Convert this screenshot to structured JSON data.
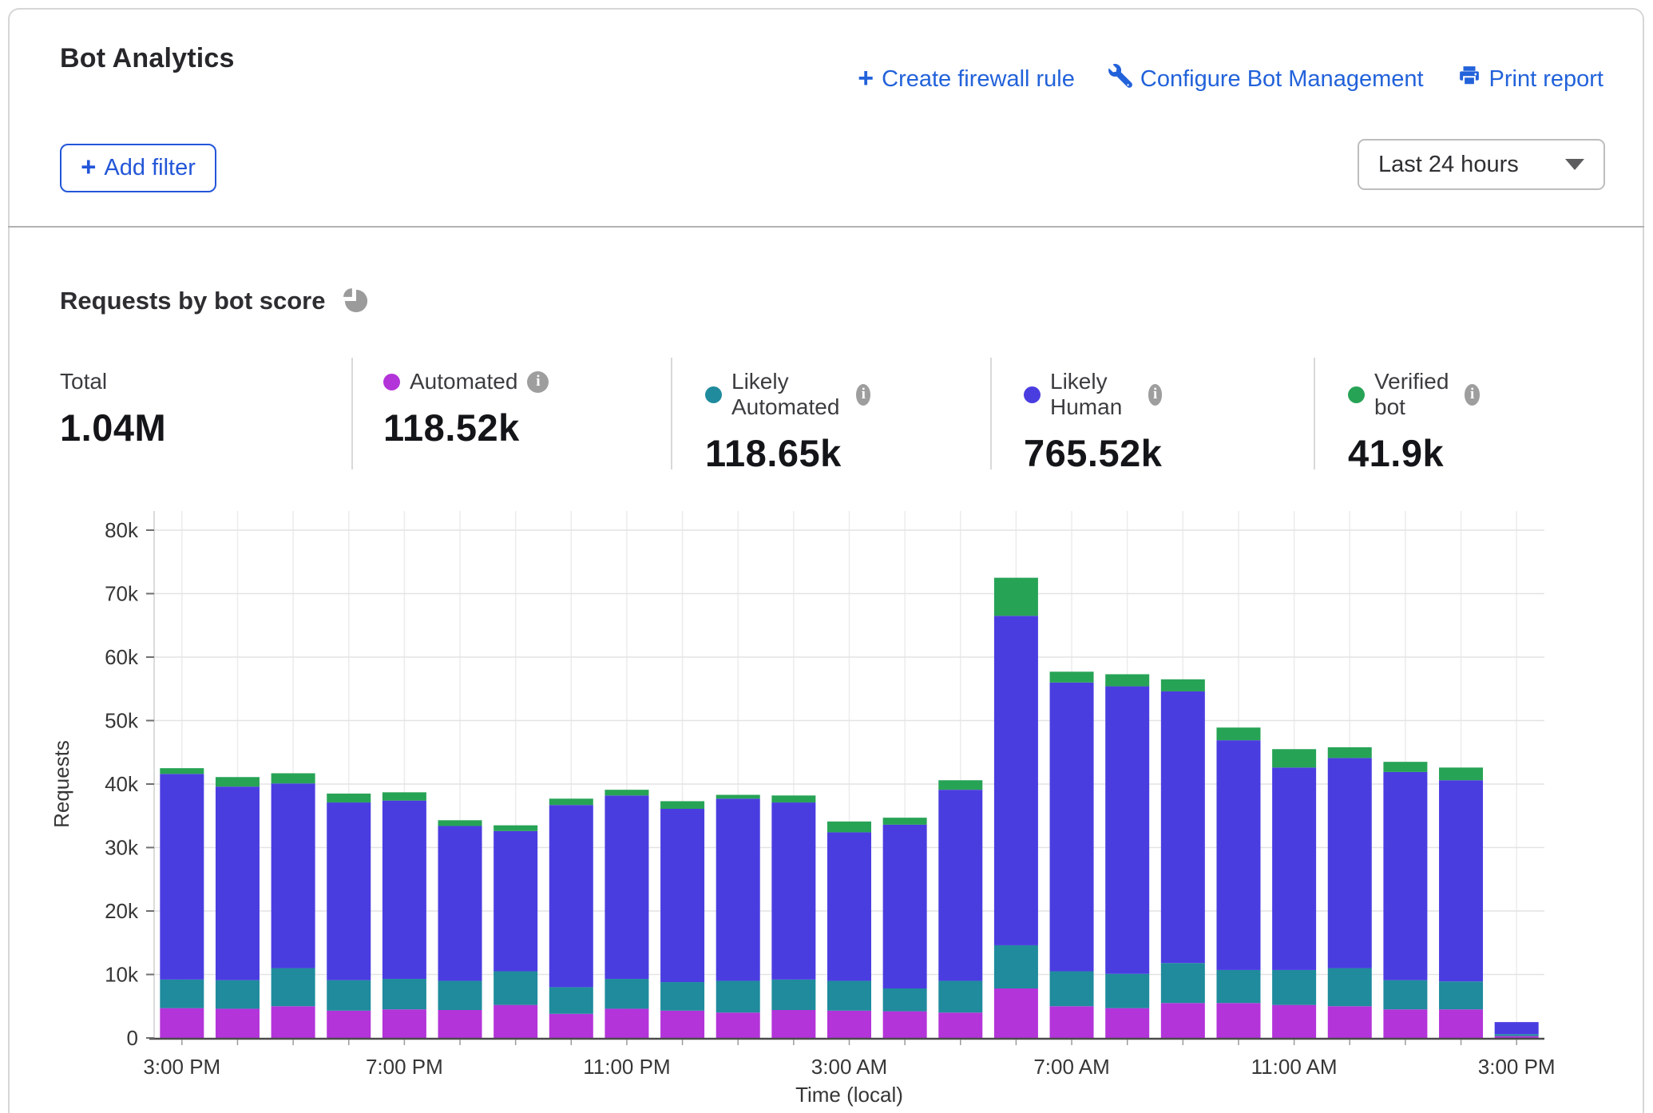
{
  "header": {
    "title": "Bot Analytics",
    "actions": [
      {
        "label": "Create firewall rule",
        "icon": "plus-icon"
      },
      {
        "label": "Configure Bot Management",
        "icon": "wrench-icon"
      },
      {
        "label": "Print report",
        "icon": "printer-icon"
      }
    ]
  },
  "filters": {
    "add_filter_label": "Add filter",
    "time_range_value": "Last 24 hours"
  },
  "section": {
    "title": "Requests by bot score"
  },
  "stats": {
    "items": [
      {
        "label": "Total",
        "value": "1.04M"
      },
      {
        "label": "Automated",
        "value": "118.52k",
        "color": "#b334d9",
        "has_info": true
      },
      {
        "label": "Likely Automated",
        "value": "118.65k",
        "color": "#1f8b9d",
        "has_info": true
      },
      {
        "label": "Likely Human",
        "value": "765.52k",
        "color": "#4a3de0",
        "has_info": true
      },
      {
        "label": "Verified bot",
        "value": "41.9k",
        "color": "#27a356",
        "has_info": true
      }
    ]
  },
  "chart_data": {
    "type": "bar",
    "stacked": true,
    "title": "Requests by bot score",
    "xlabel": "Time (local)",
    "ylabel": "Requests",
    "unit": "thousands of requests",
    "ylim": [
      0,
      80
    ],
    "y_ticks": [
      "0",
      "10k",
      "20k",
      "30k",
      "40k",
      "50k",
      "60k",
      "70k",
      "80k"
    ],
    "grid": true,
    "categories": [
      "3:00 PM",
      "4:00 PM",
      "5:00 PM",
      "6:00 PM",
      "7:00 PM",
      "8:00 PM",
      "9:00 PM",
      "10:00 PM",
      "11:00 PM",
      "12:00 AM",
      "1:00 AM",
      "2:00 AM",
      "3:00 AM",
      "4:00 AM",
      "5:00 AM",
      "6:00 AM",
      "7:00 AM",
      "8:00 AM",
      "9:00 AM",
      "10:00 AM",
      "11:00 AM",
      "12:00 PM",
      "1:00 PM",
      "2:00 PM",
      "3:00 PM"
    ],
    "x_label_indices": [
      0,
      4,
      8,
      12,
      16,
      20,
      24
    ],
    "series": [
      {
        "name": "Automated",
        "color": "#b334d9",
        "values": [
          4.7,
          4.6,
          5.0,
          4.3,
          4.5,
          4.4,
          5.2,
          3.8,
          4.6,
          4.3,
          4.0,
          4.4,
          4.3,
          4.2,
          4.0,
          7.8,
          5.0,
          4.7,
          5.5,
          5.5,
          5.2,
          5.0,
          4.5,
          4.5,
          0.3
        ]
      },
      {
        "name": "Likely Automated",
        "color": "#1f8b9d",
        "values": [
          4.5,
          4.5,
          6.0,
          4.8,
          4.8,
          4.6,
          5.3,
          4.2,
          4.7,
          4.5,
          5.0,
          4.8,
          4.7,
          3.6,
          5.0,
          6.8,
          5.5,
          5.4,
          6.3,
          5.2,
          5.5,
          6.0,
          4.6,
          4.4,
          0.3
        ]
      },
      {
        "name": "Likely Human",
        "color": "#4a3de0",
        "values": [
          32.4,
          30.5,
          29.1,
          28.0,
          28.1,
          24.4,
          22.1,
          28.7,
          28.9,
          27.3,
          28.7,
          27.9,
          23.4,
          25.8,
          30.1,
          51.9,
          45.5,
          45.3,
          42.8,
          36.2,
          31.9,
          33.1,
          32.8,
          31.7,
          1.9
        ]
      },
      {
        "name": "Verified bot",
        "color": "#27a356",
        "values": [
          0.9,
          1.5,
          1.6,
          1.4,
          1.3,
          0.9,
          0.9,
          1.0,
          0.9,
          1.2,
          0.6,
          1.1,
          1.7,
          1.1,
          1.5,
          6.0,
          1.7,
          1.9,
          1.9,
          2.0,
          2.9,
          1.7,
          1.6,
          2.0,
          0.0
        ]
      }
    ]
  }
}
